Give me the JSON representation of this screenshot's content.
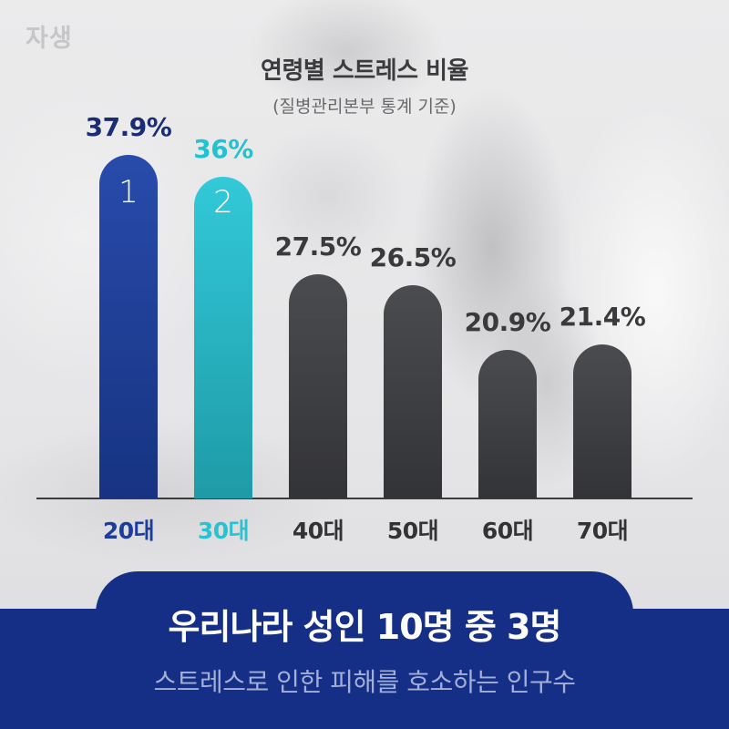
{
  "logo": {
    "text": "자생"
  },
  "chart_data": {
    "type": "bar",
    "title": "연령별 스트레스 비율",
    "subtitle": "(질병관리본부 통계 기준)",
    "categories": [
      "20대",
      "30대",
      "40대",
      "50대",
      "60대",
      "70대"
    ],
    "values": [
      37.9,
      36,
      27.5,
      26.5,
      20.9,
      21.4
    ],
    "value_labels": [
      "37.9%",
      "36%",
      "27.5%",
      "26.5%",
      "20.9%",
      "21.4%"
    ],
    "rank_labels": [
      "1",
      "2"
    ],
    "ylim": [
      8,
      40
    ],
    "grid": false,
    "bar_colors": [
      "#1d41a6",
      "#27c6d6",
      "#414246",
      "#414246",
      "#414246",
      "#414246"
    ],
    "value_label_colors": [
      "#1b2c76",
      "#24c1d1",
      "#3a3a3c",
      "#3a3a3c",
      "#3a3a3c",
      "#3a3a3c"
    ],
    "tick_label_colors": [
      "#1d3d9c",
      "#29c2d2",
      "#333335",
      "#333335",
      "#333335",
      "#333335"
    ]
  },
  "banner": {
    "headline": "우리나라 성인 10명 중 3명",
    "caption": "스트레스로 인한 피해를 호소하는 인구수",
    "background_color": "#152f86",
    "caption_color": "#a3afd7"
  }
}
